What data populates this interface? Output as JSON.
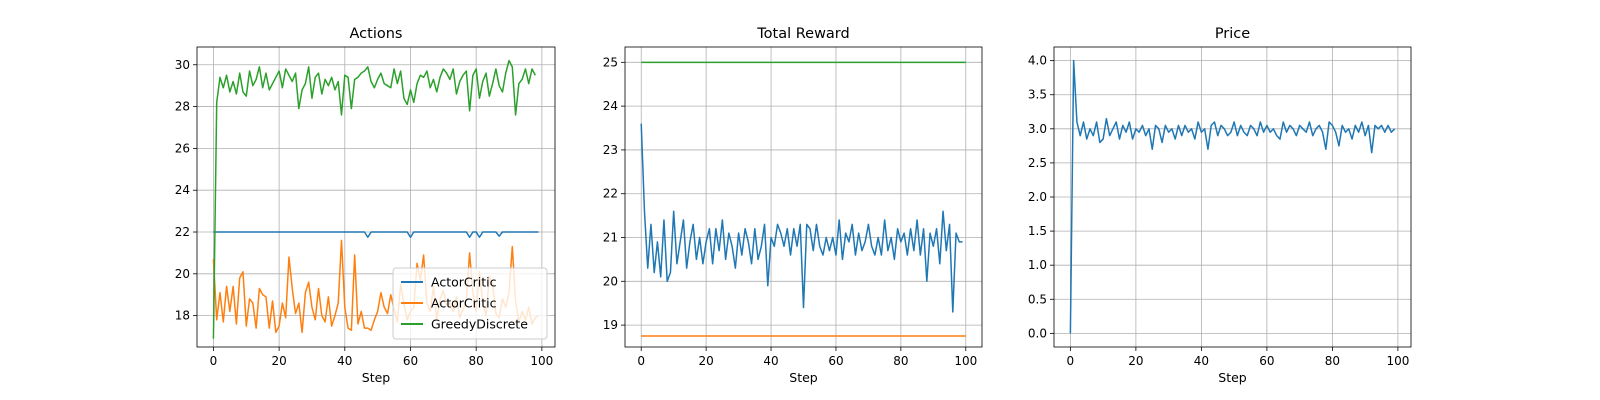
{
  "chart_data": [
    {
      "type": "line",
      "title": "Actions",
      "xlabel": "Step",
      "ylabel": "",
      "xlim": [
        -5,
        104
      ],
      "ylim": [
        16.5,
        30.85
      ],
      "xticks": [
        0,
        20,
        40,
        60,
        80,
        100
      ],
      "yticks": [
        18,
        20,
        22,
        24,
        26,
        28,
        30
      ],
      "grid": true,
      "legend": "lower-right",
      "series": [
        {
          "name": "ActorCritic",
          "color": "#1f77b4",
          "x_start": 0,
          "values": [
            22,
            22,
            22,
            22,
            22,
            22,
            22,
            22,
            22,
            22,
            22,
            22,
            22,
            22,
            22,
            22,
            22,
            22,
            22,
            22,
            22,
            22,
            22,
            22,
            22,
            22,
            22,
            22,
            22,
            22,
            22,
            22,
            22,
            22,
            22,
            22,
            22,
            22,
            22,
            22,
            22,
            22,
            22,
            22,
            22,
            22,
            22,
            21.75,
            22,
            22,
            22,
            22,
            22,
            22,
            22,
            22,
            22,
            22,
            22,
            22,
            21.75,
            22,
            22,
            22,
            22,
            22,
            22,
            22,
            22,
            22,
            22,
            22,
            22,
            22,
            22,
            22,
            22,
            22,
            21.75,
            22,
            22,
            21.75,
            22,
            22,
            22,
            22,
            22,
            21.8,
            22,
            22,
            22,
            22,
            22,
            22,
            22,
            22,
            22,
            22,
            22,
            22
          ]
        },
        {
          "name": "ActorCritic",
          "color": "#ff7f0e",
          "x_start": 0,
          "values": [
            20.7,
            17.8,
            19.1,
            17.7,
            19.4,
            18.2,
            19.4,
            17.6,
            19.8,
            20.1,
            17.5,
            18.8,
            18.6,
            17.4,
            19.3,
            19.0,
            18.9,
            17.4,
            18.7,
            17.2,
            17.5,
            18.6,
            17.9,
            20.8,
            19.3,
            18.1,
            18.6,
            17.2,
            19.1,
            19.6,
            18.4,
            17.8,
            19.3,
            18.0,
            17.7,
            18.9,
            17.5,
            18.0,
            18.6,
            21.6,
            18.4,
            17.4,
            17.3,
            20.9,
            17.6,
            18.2,
            17.4,
            17.4,
            17.3,
            17.8,
            18.2,
            19.1,
            18.4,
            18.1,
            19.0,
            18.3,
            17.7,
            19.5,
            18.6,
            17.8,
            18.2,
            18.4,
            20.5,
            19.7,
            20.9,
            18.6,
            18.2,
            19.4,
            17.8,
            18.8,
            19.2,
            18.5,
            18.6,
            18.2,
            18.9,
            17.9,
            18.3,
            18.7,
            21.0,
            19.1,
            18.2,
            20.1,
            18.6,
            18.0,
            19.9,
            19.5,
            18.1,
            17.9,
            18.8,
            18.4,
            19.1,
            21.3,
            18.7,
            17.7,
            18.2,
            17.8,
            18.4,
            17.6,
            17.9,
            18.0
          ]
        },
        {
          "name": "GreedyDiscrete",
          "color": "#2ca02c",
          "x_start": 0,
          "values": [
            16.9,
            28.2,
            29.4,
            28.9,
            29.5,
            28.7,
            29.2,
            28.6,
            29.6,
            28.7,
            28.5,
            29.7,
            29.0,
            29.3,
            29.9,
            28.9,
            29.6,
            28.8,
            29.1,
            29.4,
            29.7,
            28.9,
            29.8,
            29.5,
            29.2,
            29.6,
            27.9,
            28.8,
            29.1,
            29.9,
            28.4,
            29.4,
            29.6,
            28.6,
            29.3,
            29.0,
            29.4,
            28.8,
            29.2,
            27.6,
            29.5,
            29.4,
            27.9,
            29.3,
            29.4,
            29.6,
            29.7,
            29.9,
            29.2,
            28.9,
            29.3,
            29.6,
            29.1,
            29.0,
            28.9,
            29.8,
            29.1,
            29.7,
            28.4,
            28.1,
            28.8,
            28.2,
            29.1,
            29.5,
            29.4,
            29.7,
            28.9,
            29.3,
            28.7,
            29.4,
            29.8,
            29.6,
            29.3,
            29.8,
            28.6,
            29.2,
            29.5,
            29.7,
            27.8,
            29.5,
            29.8,
            28.4,
            29.2,
            29.6,
            28.5,
            29.1,
            29.8,
            29.0,
            28.7,
            29.6,
            30.2,
            29.9,
            27.6,
            29.1,
            29.3,
            29.8,
            29.1,
            29.8,
            29.5
          ]
        }
      ]
    },
    {
      "type": "line",
      "title": "Total Reward",
      "xlabel": "Step",
      "ylabel": "",
      "xlim": [
        -5,
        105
      ],
      "ylim": [
        18.5,
        25.35
      ],
      "xticks": [
        0,
        20,
        40,
        60,
        80,
        100
      ],
      "yticks": [
        19,
        20,
        21,
        22,
        23,
        24,
        25
      ],
      "grid": true,
      "legend": "none",
      "series": [
        {
          "name": "",
          "color": "#1f77b4",
          "x_start": 0,
          "values": [
            23.6,
            21.6,
            20.3,
            21.3,
            20.2,
            20.9,
            20.1,
            21.4,
            20.0,
            20.2,
            21.6,
            20.4,
            20.9,
            21.4,
            20.3,
            20.9,
            21.3,
            20.5,
            21.0,
            20.4,
            20.9,
            21.2,
            20.4,
            21.2,
            20.7,
            21.4,
            20.5,
            21.1,
            20.8,
            20.3,
            21.1,
            20.6,
            21.2,
            20.9,
            20.4,
            21.2,
            20.5,
            20.8,
            21.3,
            19.9,
            21.0,
            20.8,
            21.3,
            21.1,
            20.8,
            21.2,
            20.6,
            21.2,
            20.8,
            21.3,
            19.4,
            21.3,
            21.2,
            20.7,
            21.3,
            20.8,
            20.6,
            21.0,
            20.7,
            21.0,
            20.6,
            21.4,
            20.5,
            21.1,
            20.9,
            21.3,
            20.6,
            21.1,
            20.7,
            20.9,
            21.3,
            20.8,
            20.6,
            21.0,
            20.6,
            21.4,
            20.7,
            21.0,
            20.5,
            21.2,
            20.9,
            21.1,
            20.6,
            21.2,
            20.7,
            21.4,
            20.6,
            21.2,
            20.0,
            21.1,
            20.8,
            21.2,
            20.4,
            21.6,
            20.7,
            21.3,
            19.3,
            21.1,
            20.9,
            20.9
          ]
        },
        {
          "name": "",
          "color": "#ff7f0e",
          "x_start": 0,
          "values": [
            18.75,
            18.75,
            18.75,
            18.75,
            18.75,
            18.75,
            18.75,
            18.75,
            18.75,
            18.75,
            18.75,
            18.75,
            18.75,
            18.75,
            18.75,
            18.75,
            18.75,
            18.75,
            18.75,
            18.75,
            18.75,
            18.75,
            18.75,
            18.75,
            18.75,
            18.75,
            18.75,
            18.75,
            18.75,
            18.75,
            18.75,
            18.75,
            18.75,
            18.75,
            18.75,
            18.75,
            18.75,
            18.75,
            18.75,
            18.75,
            18.75,
            18.75,
            18.75,
            18.75,
            18.75,
            18.75,
            18.75,
            18.75,
            18.75,
            18.75,
            18.75,
            18.75,
            18.75,
            18.75,
            18.75,
            18.75,
            18.75,
            18.75,
            18.75,
            18.75,
            18.75,
            18.75,
            18.75,
            18.75,
            18.75,
            18.75,
            18.75,
            18.75,
            18.75,
            18.75,
            18.75,
            18.75,
            18.75,
            18.75,
            18.75,
            18.75,
            18.75,
            18.75,
            18.75,
            18.75,
            18.75,
            18.75,
            18.75,
            18.75,
            18.75,
            18.75,
            18.75,
            18.75,
            18.75,
            18.75,
            18.75,
            18.75,
            18.75,
            18.75,
            18.75,
            18.75,
            18.75,
            18.75,
            18.75,
            18.75,
            18.75
          ]
        },
        {
          "name": "",
          "color": "#2ca02c",
          "x_start": 0,
          "values": [
            25,
            25,
            25,
            25,
            25,
            25,
            25,
            25,
            25,
            25,
            25,
            25,
            25,
            25,
            25,
            25,
            25,
            25,
            25,
            25,
            25,
            25,
            25,
            25,
            25,
            25,
            25,
            25,
            25,
            25,
            25,
            25,
            25,
            25,
            25,
            25,
            25,
            25,
            25,
            25,
            25,
            25,
            25,
            25,
            25,
            25,
            25,
            25,
            25,
            25,
            25,
            25,
            25,
            25,
            25,
            25,
            25,
            25,
            25,
            25,
            25,
            25,
            25,
            25,
            25,
            25,
            25,
            25,
            25,
            25,
            25,
            25,
            25,
            25,
            25,
            25,
            25,
            25,
            25,
            25,
            25,
            25,
            25,
            25,
            25,
            25,
            25,
            25,
            25,
            25,
            25,
            25,
            25,
            25,
            25,
            25,
            25,
            25,
            25,
            25,
            25
          ]
        }
      ]
    },
    {
      "type": "line",
      "title": "Price",
      "xlabel": "Step",
      "ylabel": "",
      "xlim": [
        -5,
        104
      ],
      "ylim": [
        -0.2,
        4.2
      ],
      "xticks": [
        0,
        20,
        40,
        60,
        80,
        100
      ],
      "yticks": [
        0.0,
        0.5,
        1.0,
        1.5,
        2.0,
        2.5,
        3.0,
        3.5,
        4.0
      ],
      "ytick_labels": [
        "0.0",
        "0.5",
        "1.0",
        "1.5",
        "2.0",
        "2.5",
        "3.0",
        "3.5",
        "4.0"
      ],
      "grid": true,
      "legend": "none",
      "series": [
        {
          "name": "",
          "color": "#1f77b4",
          "x_start": 0,
          "values": [
            0.0,
            4.0,
            3.1,
            2.9,
            3.1,
            2.85,
            3.0,
            2.9,
            3.1,
            2.8,
            2.85,
            3.15,
            2.9,
            3.0,
            3.1,
            2.85,
            3.05,
            2.95,
            3.1,
            2.85,
            3.0,
            2.95,
            3.05,
            2.9,
            3.0,
            2.7,
            3.05,
            3.0,
            2.8,
            3.05,
            2.95,
            3.0,
            2.85,
            3.05,
            2.9,
            3.05,
            2.95,
            3.0,
            2.85,
            3.1,
            2.95,
            3.0,
            2.7,
            3.05,
            3.1,
            2.9,
            3.05,
            3.0,
            2.9,
            2.95,
            3.1,
            2.9,
            3.05,
            2.95,
            2.9,
            3.05,
            3.0,
            2.9,
            3.1,
            2.95,
            3.05,
            2.95,
            3.0,
            2.9,
            2.85,
            3.1,
            2.95,
            3.05,
            3.0,
            2.9,
            3.05,
            3.0,
            2.95,
            3.1,
            2.9,
            3.0,
            3.05,
            2.95,
            2.7,
            3.1,
            3.05,
            2.95,
            2.75,
            3.05,
            2.95,
            3.0,
            2.85,
            3.05,
            2.95,
            3.1,
            2.9,
            3.05,
            2.65,
            3.05,
            3.0,
            3.05,
            2.95,
            3.05,
            2.95,
            3.0
          ]
        }
      ]
    }
  ]
}
